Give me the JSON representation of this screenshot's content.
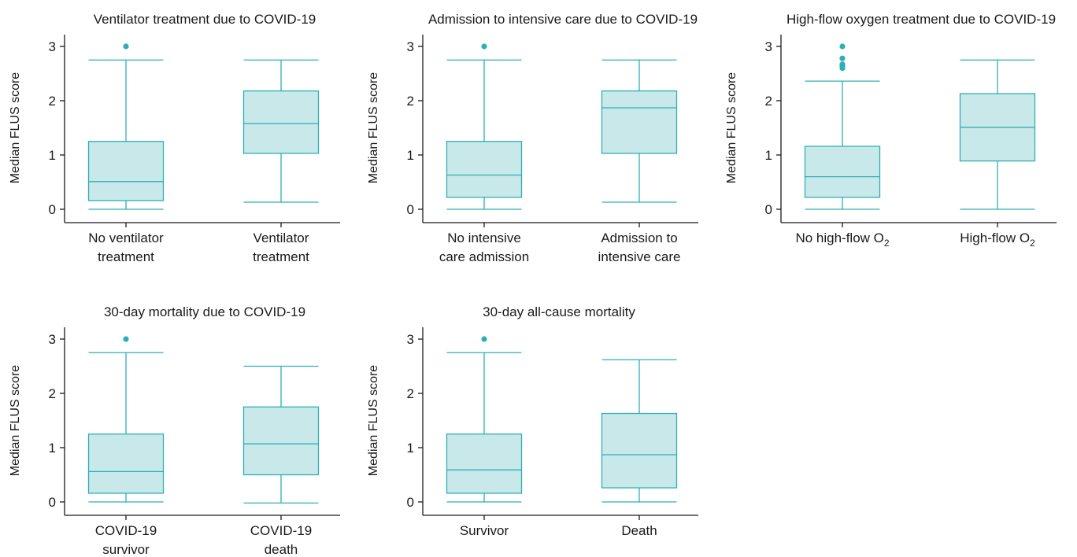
{
  "style": {
    "box_fill": "#c9e8ea",
    "box_stroke": "#2cb0b6",
    "outlier": "#2cb0b6",
    "axis": "#1a1a1a"
  },
  "chart_data": [
    {
      "type": "box",
      "title": "Ventilator treatment due to COVID-19",
      "ylabel": "Median FLUS score",
      "ylim": [
        0,
        3
      ],
      "yticks": [
        0,
        1,
        2,
        3
      ],
      "categories": [
        {
          "lines": [
            "No ventilator",
            "treatment"
          ]
        },
        {
          "lines": [
            "Ventilator",
            "treatment"
          ]
        }
      ],
      "boxes": [
        {
          "min": 0.0,
          "q1": 0.16,
          "median": 0.51,
          "q3": 1.25,
          "max": 2.75,
          "outliers": [
            3.0
          ]
        },
        {
          "min": 0.13,
          "q1": 1.03,
          "median": 1.58,
          "q3": 2.18,
          "max": 2.75,
          "outliers": []
        }
      ]
    },
    {
      "type": "box",
      "title": "Admission to intensive care due to COVID-19",
      "ylabel": "Median FLUS score",
      "ylim": [
        0,
        3
      ],
      "yticks": [
        0,
        1,
        2,
        3
      ],
      "categories": [
        {
          "lines": [
            "No intensive",
            "care admission"
          ]
        },
        {
          "lines": [
            "Admission to",
            "intensive care"
          ]
        }
      ],
      "boxes": [
        {
          "min": 0.0,
          "q1": 0.22,
          "median": 0.63,
          "q3": 1.25,
          "max": 2.75,
          "outliers": [
            3.0
          ]
        },
        {
          "min": 0.13,
          "q1": 1.03,
          "median": 1.87,
          "q3": 2.18,
          "max": 2.75,
          "outliers": []
        }
      ]
    },
    {
      "type": "box",
      "title": "High-flow oxygen treatment due to COVID-19",
      "ylabel": "Median FLUS score",
      "ylim": [
        0,
        3
      ],
      "yticks": [
        0,
        1,
        2,
        3
      ],
      "categories": [
        {
          "lines": [
            "No high-flow O"
          ],
          "sub": "2"
        },
        {
          "lines": [
            "High-flow O"
          ],
          "sub": "2"
        }
      ],
      "boxes": [
        {
          "min": 0.0,
          "q1": 0.22,
          "median": 0.6,
          "q3": 1.16,
          "max": 2.36,
          "outliers": [
            2.6,
            2.64,
            2.67,
            2.78,
            3.0
          ]
        },
        {
          "min": 0.0,
          "q1": 0.89,
          "median": 1.51,
          "q3": 2.13,
          "max": 2.75,
          "outliers": []
        }
      ]
    },
    {
      "type": "box",
      "title": "30-day mortality due to COVID-19",
      "ylabel": "Median FLUS score",
      "ylim": [
        0,
        3
      ],
      "yticks": [
        0,
        1,
        2,
        3
      ],
      "categories": [
        {
          "lines": [
            "COVID-19",
            "survivor"
          ]
        },
        {
          "lines": [
            "COVID-19",
            "death"
          ]
        }
      ],
      "boxes": [
        {
          "min": 0.0,
          "q1": 0.16,
          "median": 0.56,
          "q3": 1.25,
          "max": 2.75,
          "outliers": [
            3.0
          ]
        },
        {
          "min": -0.02,
          "q1": 0.5,
          "median": 1.07,
          "q3": 1.75,
          "max": 2.5,
          "outliers": []
        }
      ]
    },
    {
      "type": "box",
      "title": "30-day all-cause mortality",
      "ylabel": "Median FLUS score",
      "ylim": [
        0,
        3
      ],
      "yticks": [
        0,
        1,
        2,
        3
      ],
      "categories": [
        {
          "lines": [
            "Survivor"
          ]
        },
        {
          "lines": [
            "Death"
          ]
        }
      ],
      "boxes": [
        {
          "min": 0.0,
          "q1": 0.16,
          "median": 0.59,
          "q3": 1.25,
          "max": 2.75,
          "outliers": [
            3.0
          ]
        },
        {
          "min": 0.0,
          "q1": 0.26,
          "median": 0.87,
          "q3": 1.63,
          "max": 2.62,
          "outliers": []
        }
      ]
    }
  ]
}
